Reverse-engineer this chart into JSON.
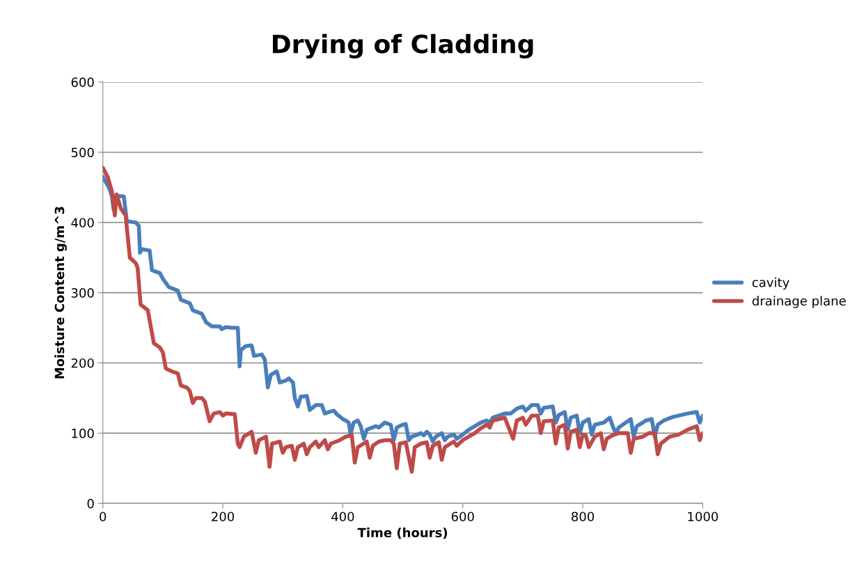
{
  "chart_data": {
    "type": "line",
    "title": "Drying of Cladding",
    "xlabel": "Time (hours)",
    "ylabel": "Moisture Content g/m^3",
    "xlim": [
      0,
      1000
    ],
    "xticks": [
      0,
      200,
      400,
      600,
      800,
      1000
    ],
    "ylim": [
      0,
      600
    ],
    "yticks": [
      0,
      100,
      200,
      300,
      400,
      500,
      600
    ],
    "grid": "y",
    "legend": "right",
    "marker": "none",
    "line_style": "solid",
    "series": [
      {
        "name": "cavity",
        "color": "#4a7ebb",
        "x": [
          0,
          10,
          15,
          18,
          20,
          35,
          40,
          55,
          60,
          62,
          65,
          78,
          82,
          95,
          100,
          110,
          125,
          130,
          145,
          150,
          165,
          172,
          182,
          195,
          198,
          205,
          215,
          225,
          228,
          230,
          238,
          248,
          252,
          265,
          270,
          275,
          280,
          290,
          295,
          305,
          310,
          317,
          320,
          325,
          330,
          340,
          345,
          355,
          365,
          370,
          380,
          385,
          390,
          400,
          405,
          410,
          413,
          418,
          425,
          430,
          435,
          440,
          455,
          460,
          470,
          480,
          485,
          490,
          500,
          505,
          510,
          515,
          525,
          530,
          535,
          540,
          545,
          550,
          555,
          565,
          570,
          575,
          585,
          590,
          600,
          610,
          620,
          630,
          640,
          645,
          650,
          660,
          670,
          680,
          690,
          700,
          705,
          715,
          725,
          730,
          735,
          750,
          755,
          760,
          770,
          775,
          780,
          790,
          795,
          800,
          810,
          815,
          820,
          835,
          845,
          850,
          855,
          860,
          875,
          880,
          885,
          890,
          900,
          905,
          915,
          920,
          925,
          935,
          950,
          960,
          975,
          990,
          995,
          1000
        ],
        "values": [
          465,
          450,
          438,
          418,
          438,
          437,
          402,
          400,
          395,
          357,
          362,
          360,
          332,
          328,
          320,
          308,
          303,
          290,
          285,
          275,
          270,
          258,
          252,
          252,
          248,
          251,
          250,
          250,
          195,
          218,
          224,
          225,
          210,
          212,
          205,
          165,
          183,
          188,
          172,
          175,
          178,
          172,
          150,
          138,
          152,
          153,
          133,
          140,
          140,
          128,
          131,
          132,
          127,
          120,
          118,
          115,
          98,
          115,
          118,
          110,
          92,
          105,
          110,
          108,
          115,
          112,
          90,
          108,
          112,
          113,
          90,
          95,
          98,
          100,
          97,
          102,
          98,
          88,
          95,
          100,
          90,
          95,
          98,
          92,
          98,
          105,
          110,
          115,
          118,
          115,
          122,
          125,
          128,
          128,
          135,
          138,
          132,
          140,
          140,
          128,
          136,
          138,
          115,
          126,
          130,
          105,
          122,
          125,
          100,
          115,
          120,
          98,
          112,
          115,
          122,
          110,
          100,
          108,
          117,
          120,
          95,
          110,
          115,
          118,
          120,
          95,
          112,
          118,
          123,
          125,
          128,
          130,
          115,
          125
        ]
      },
      {
        "name": "drainage plane",
        "color": "#be4b48",
        "x": [
          0,
          8,
          15,
          20,
          23,
          30,
          38,
          45,
          55,
          58,
          63,
          75,
          85,
          95,
          100,
          105,
          115,
          125,
          130,
          140,
          145,
          150,
          155,
          165,
          170,
          178,
          185,
          195,
          200,
          205,
          220,
          225,
          228,
          235,
          248,
          255,
          260,
          272,
          278,
          282,
          295,
          300,
          305,
          315,
          320,
          325,
          335,
          340,
          345,
          355,
          360,
          365,
          370,
          375,
          380,
          395,
          405,
          415,
          420,
          425,
          440,
          445,
          450,
          460,
          470,
          480,
          485,
          490,
          495,
          505,
          515,
          520,
          530,
          540,
          545,
          550,
          560,
          565,
          570,
          585,
          590,
          600,
          610,
          620,
          630,
          640,
          645,
          650,
          660,
          670,
          684,
          690,
          700,
          705,
          715,
          725,
          730,
          735,
          750,
          755,
          760,
          770,
          775,
          780,
          790,
          795,
          800,
          805,
          810,
          820,
          830,
          835,
          840,
          850,
          860,
          875,
          880,
          885,
          900,
          910,
          920,
          925,
          930,
          945,
          960,
          975,
          990,
          995,
          1000
        ],
        "values": [
          478,
          465,
          445,
          410,
          440,
          420,
          410,
          350,
          342,
          335,
          283,
          275,
          228,
          222,
          215,
          192,
          188,
          185,
          168,
          165,
          160,
          143,
          150,
          150,
          145,
          117,
          128,
          130,
          125,
          128,
          127,
          85,
          80,
          95,
          102,
          72,
          90,
          95,
          52,
          85,
          88,
          72,
          80,
          82,
          62,
          80,
          85,
          70,
          80,
          88,
          80,
          85,
          90,
          77,
          85,
          90,
          95,
          97,
          58,
          80,
          88,
          65,
          82,
          88,
          90,
          90,
          85,
          50,
          85,
          87,
          45,
          80,
          85,
          87,
          65,
          82,
          87,
          62,
          80,
          88,
          82,
          90,
          95,
          100,
          107,
          112,
          108,
          118,
          120,
          122,
          92,
          118,
          122,
          112,
          125,
          125,
          100,
          117,
          118,
          85,
          108,
          112,
          78,
          102,
          105,
          80,
          98,
          97,
          80,
          95,
          100,
          77,
          92,
          97,
          100,
          100,
          72,
          92,
          95,
          100,
          100,
          70,
          85,
          95,
          98,
          105,
          110,
          90,
          100
        ]
      }
    ]
  }
}
